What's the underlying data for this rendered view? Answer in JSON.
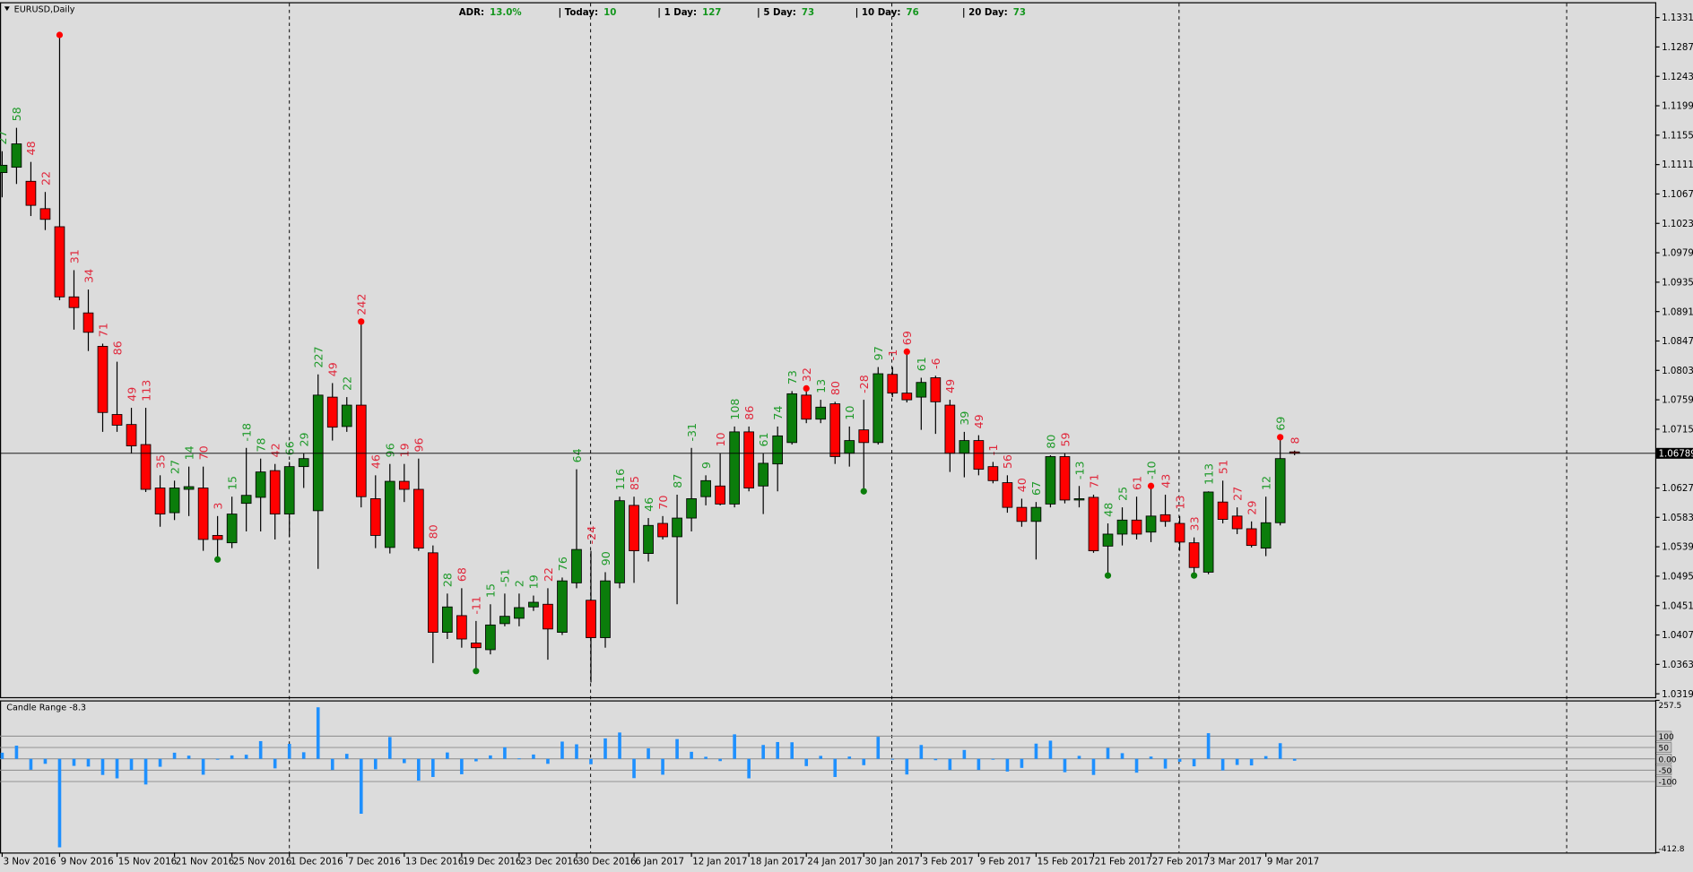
{
  "header": {
    "symbol": "EURUSD,Daily",
    "stats": [
      {
        "label": "ADR:",
        "value": "13.0%"
      },
      {
        "label": "| Today:",
        "value": "10"
      },
      {
        "label": "| 1 Day:",
        "value": "127"
      },
      {
        "label": "| 5 Day:",
        "value": "73"
      },
      {
        "label": "| 10 Day:",
        "value": "76"
      },
      {
        "label": "| 20 Day:",
        "value": "73"
      }
    ]
  },
  "chart_data": [
    {
      "type": "candlestick",
      "categories": [
        "3 Nov 2016",
        null,
        null,
        null,
        "9 Nov 2016",
        null,
        null,
        null,
        "15 Nov 2016",
        null,
        null,
        null,
        "21 Nov 2016",
        null,
        null,
        null,
        "25 Nov 2016",
        null,
        null,
        null,
        "1 Dec 2016",
        null,
        null,
        null,
        "7 Dec 2016",
        null,
        null,
        null,
        "13 Dec 2016",
        null,
        null,
        null,
        "19 Dec 2016",
        null,
        null,
        null,
        "23 Dec 2016",
        null,
        null,
        null,
        "30 Dec 2016",
        null,
        null,
        null,
        "6 Jan 2017",
        null,
        null,
        null,
        "12 Jan 2017",
        null,
        null,
        null,
        "18 Jan 2017",
        null,
        null,
        null,
        "24 Jan 2017",
        null,
        null,
        null,
        "30 Jan 2017",
        null,
        null,
        null,
        "3 Feb 2017",
        null,
        null,
        null,
        "9 Feb 2017",
        null,
        null,
        null,
        "15 Feb 2017",
        null,
        null,
        null,
        "21 Feb 2017",
        null,
        null,
        null,
        "27 Feb 2017",
        null,
        null,
        null,
        "3 Mar 2017",
        null,
        null,
        null,
        "9 Mar 2017",
        null,
        null
      ],
      "open": [
        1.1099,
        1.1107,
        1.1086,
        1.1045,
        1.1018,
        1.0913,
        1.0889,
        1.0839,
        1.0737,
        1.0722,
        1.0692,
        1.0627,
        1.059,
        1.0625,
        1.0627,
        1.0556,
        1.0545,
        1.0604,
        1.0613,
        1.0653,
        1.0588,
        1.0659,
        1.0593,
        1.0763,
        1.0719,
        1.0751,
        1.0611,
        1.0538,
        1.0637,
        1.0625,
        1.053,
        1.0411,
        1.0436,
        1.0395,
        1.0385,
        1.0424,
        1.0432,
        1.0449,
        1.0453,
        1.0411,
        1.0485,
        1.0459,
        1.0403,
        1.0485,
        1.0601,
        1.0529,
        1.0574,
        1.0554,
        1.0582,
        1.0614,
        1.063,
        1.0603,
        1.0711,
        1.063,
        1.0663,
        1.0695,
        1.0766,
        1.073,
        1.0753,
        1.0679,
        1.0714,
        1.0695,
        1.0797,
        1.0769,
        1.0763,
        1.0792,
        1.0751,
        1.0679,
        1.0698,
        1.0659,
        1.0635,
        1.0598,
        1.0577,
        1.0603,
        1.0674,
        1.0609,
        1.0613,
        1.054,
        1.0558,
        1.0579,
        1.0561,
        1.0587,
        1.0574,
        1.0545,
        1.0501,
        1.0606,
        1.0585,
        1.0566,
        1.0537,
        1.0575,
        1.0681
      ],
      "high": [
        1.1131,
        1.1166,
        1.1115,
        1.107,
        1.1305,
        1.0953,
        1.0924,
        1.0843,
        1.0816,
        1.0747,
        1.0747,
        1.0646,
        1.0638,
        1.0659,
        1.0659,
        1.0585,
        1.0614,
        1.0687,
        1.0671,
        1.0663,
        1.0666,
        1.0679,
        1.0797,
        1.0784,
        1.0763,
        1.0876,
        1.0646,
        1.0663,
        1.0663,
        1.0671,
        1.0541,
        1.0469,
        1.0477,
        1.0428,
        1.0453,
        1.0469,
        1.0469,
        1.0466,
        1.0477,
        1.0493,
        1.0655,
        1.0533,
        1.0501,
        1.0614,
        1.0614,
        1.0582,
        1.0585,
        1.0617,
        1.0687,
        1.0646,
        1.0679,
        1.0719,
        1.0719,
        1.0679,
        1.0719,
        1.0772,
        1.0776,
        1.0759,
        1.0756,
        1.0719,
        1.0759,
        1.0808,
        1.0808,
        1.0831,
        1.0792,
        1.0795,
        1.0759,
        1.0711,
        1.0706,
        1.0666,
        1.0646,
        1.0611,
        1.0606,
        1.0676,
        1.0679,
        1.063,
        1.0617,
        1.0574,
        1.0598,
        1.0614,
        1.063,
        1.0617,
        1.0585,
        1.0553,
        1.0622,
        1.0638,
        1.0598,
        1.0577,
        1.0614,
        1.0703,
        1.0683
      ],
      "low": [
        1.1062,
        1.1082,
        1.1034,
        1.1013,
        1.0908,
        1.0864,
        1.0832,
        1.0711,
        1.0711,
        1.0679,
        1.0621,
        1.0569,
        1.0579,
        1.0585,
        1.0533,
        1.052,
        1.0537,
        1.0562,
        1.0562,
        1.055,
        1.0554,
        1.0627,
        1.0506,
        1.0698,
        1.0711,
        1.0598,
        1.0537,
        1.0529,
        1.0606,
        1.0533,
        1.0365,
        1.0401,
        1.0388,
        1.0353,
        1.0378,
        1.042,
        1.042,
        1.0443,
        1.037,
        1.0407,
        1.0477,
        1.0336,
        1.0388,
        1.0477,
        1.0485,
        1.0517,
        1.055,
        1.0453,
        1.0562,
        1.0601,
        1.0601,
        1.0598,
        1.0622,
        1.0588,
        1.0622,
        1.0692,
        1.0724,
        1.0724,
        1.0663,
        1.0659,
        1.0622,
        1.0692,
        1.0763,
        1.0755,
        1.0714,
        1.0708,
        1.0651,
        1.0643,
        1.0646,
        1.0634,
        1.059,
        1.0569,
        1.052,
        1.0598,
        1.0604,
        1.0598,
        1.053,
        1.0496,
        1.0541,
        1.055,
        1.0546,
        1.0569,
        1.0533,
        1.0496,
        1.0498,
        1.0574,
        1.0558,
        1.0538,
        1.0525,
        1.0571,
        1.0676
      ],
      "close": [
        1.111,
        1.1142,
        1.105,
        1.1029,
        1.0913,
        1.0897,
        1.086,
        1.074,
        1.0721,
        1.069,
        1.0625,
        1.0588,
        1.0627,
        1.0629,
        1.055,
        1.055,
        1.0588,
        1.0616,
        1.0651,
        1.0588,
        1.0659,
        1.0671,
        1.0766,
        1.0718,
        1.0751,
        1.0614,
        1.0556,
        1.0637,
        1.0625,
        1.0537,
        1.0411,
        1.0449,
        1.0401,
        1.0388,
        1.0422,
        1.0435,
        1.0448,
        1.0456,
        1.0416,
        1.0488,
        1.0535,
        1.0403,
        1.0488,
        1.0608,
        1.0533,
        1.0571,
        1.0554,
        1.0582,
        1.0611,
        1.0638,
        1.0603,
        1.0711,
        1.0627,
        1.0664,
        1.0705,
        1.0768,
        1.073,
        1.0748,
        1.0674,
        1.0698,
        1.0695,
        1.0798,
        1.0769,
        1.0759,
        1.0785,
        1.0756,
        1.0679,
        1.0698,
        1.0655,
        1.0638,
        1.0598,
        1.0577,
        1.0598,
        1.0674,
        1.0609,
        1.0611,
        1.0533,
        1.0558,
        1.0579,
        1.0558,
        1.0585,
        1.0577,
        1.0546,
        1.0508,
        1.0621,
        1.058,
        1.0566,
        1.0541,
        1.0575,
        1.0671,
        1.0679
      ],
      "range_labels": [
        27,
        58,
        48,
        22,
        null,
        31,
        34,
        71,
        86,
        49,
        113,
        35,
        27,
        14,
        70,
        3,
        15,
        -18,
        78,
        42,
        66,
        29,
        227,
        49,
        22,
        242,
        46,
        96,
        19,
        96,
        80,
        28,
        68,
        -11,
        15,
        -51,
        2,
        19,
        22,
        76,
        64,
        -24,
        90,
        116,
        85,
        46,
        70,
        87,
        -31,
        9,
        10,
        108,
        86,
        61,
        74,
        73,
        32,
        13,
        80,
        10,
        -28,
        97,
        -1,
        69,
        61,
        -6,
        49,
        39,
        49,
        -1,
        56,
        40,
        67,
        80,
        59,
        -13,
        71,
        48,
        25,
        61,
        -10,
        43,
        13,
        33,
        113,
        51,
        27,
        29,
        12,
        69,
        8
      ],
      "high_dots": [
        4,
        25,
        56,
        63,
        80,
        89
      ],
      "low_dots": [
        15,
        33,
        60,
        77,
        83
      ],
      "current_price": 1.06789,
      "ylim": [
        1.0314,
        1.1354
      ],
      "yticks": [
        {
          "value": 1.1331,
          "label": "1.13310"
        },
        {
          "value": 1.1287,
          "label": "1.12870"
        },
        {
          "value": 1.1243,
          "label": "1.12430"
        },
        {
          "value": 1.1199,
          "label": "1.11990"
        },
        {
          "value": 1.1155,
          "label": "1.11550"
        },
        {
          "value": 1.1111,
          "label": "1.11110"
        },
        {
          "value": 1.1067,
          "label": "1.10670"
        },
        {
          "value": 1.1023,
          "label": "1.10230"
        },
        {
          "value": 1.0979,
          "label": "1.09790"
        },
        {
          "value": 1.0935,
          "label": "1.09350"
        },
        {
          "value": 1.0891,
          "label": "1.08910"
        },
        {
          "value": 1.0847,
          "label": "1.08470"
        },
        {
          "value": 1.0803,
          "label": "1.08030"
        },
        {
          "value": 1.0759,
          "label": "1.07590"
        },
        {
          "value": 1.0715,
          "label": "1.07150"
        },
        {
          "value": 1.0627,
          "label": "1.06270"
        },
        {
          "value": 1.0583,
          "label": "1.05830"
        },
        {
          "value": 1.0539,
          "label": "1.05390"
        },
        {
          "value": 1.0495,
          "label": "1.04950"
        },
        {
          "value": 1.0451,
          "label": "1.04510"
        },
        {
          "value": 1.0407,
          "label": "1.04070"
        },
        {
          "value": 1.0363,
          "label": "1.03630"
        },
        {
          "value": 1.0319,
          "label": "1.03190"
        }
      ],
      "up_color": "#0b7d0b",
      "down_color": "#ff0000",
      "label_up_color": "#1f9a2a",
      "label_down_color": "#e0283c",
      "high_dot_color": "#ff0000",
      "low_dot_color": "#0b7d0b"
    },
    {
      "type": "bar",
      "title": "Candle Range -8.3",
      "values": [
        27,
        58,
        -48,
        -22,
        -390,
        -31,
        -34,
        -71,
        -86,
        -49,
        -113,
        -35,
        27,
        14,
        -70,
        -3,
        15,
        18,
        78,
        -42,
        66,
        29,
        227,
        -49,
        22,
        -242,
        -46,
        96,
        -19,
        -96,
        -80,
        28,
        -68,
        -11,
        15,
        51,
        2,
        19,
        -22,
        76,
        64,
        -24,
        90,
        116,
        -85,
        46,
        -70,
        87,
        31,
        9,
        -10,
        108,
        -86,
        61,
        74,
        73,
        -32,
        13,
        -80,
        10,
        -28,
        97,
        -1,
        -69,
        61,
        -6,
        -49,
        39,
        -49,
        -1,
        -56,
        -40,
        67,
        80,
        -59,
        13,
        -71,
        48,
        25,
        -61,
        10,
        -43,
        -13,
        -33,
        113,
        -51,
        -27,
        -29,
        12,
        69,
        -8.3
      ],
      "color": "#1e90ff",
      "ylim": [
        -412.8,
        257.5
      ],
      "yticks": [
        257.5,
        100,
        50,
        {
          "value": 0,
          "label": "0.00"
        },
        -50,
        -100,
        -412.8
      ]
    }
  ]
}
